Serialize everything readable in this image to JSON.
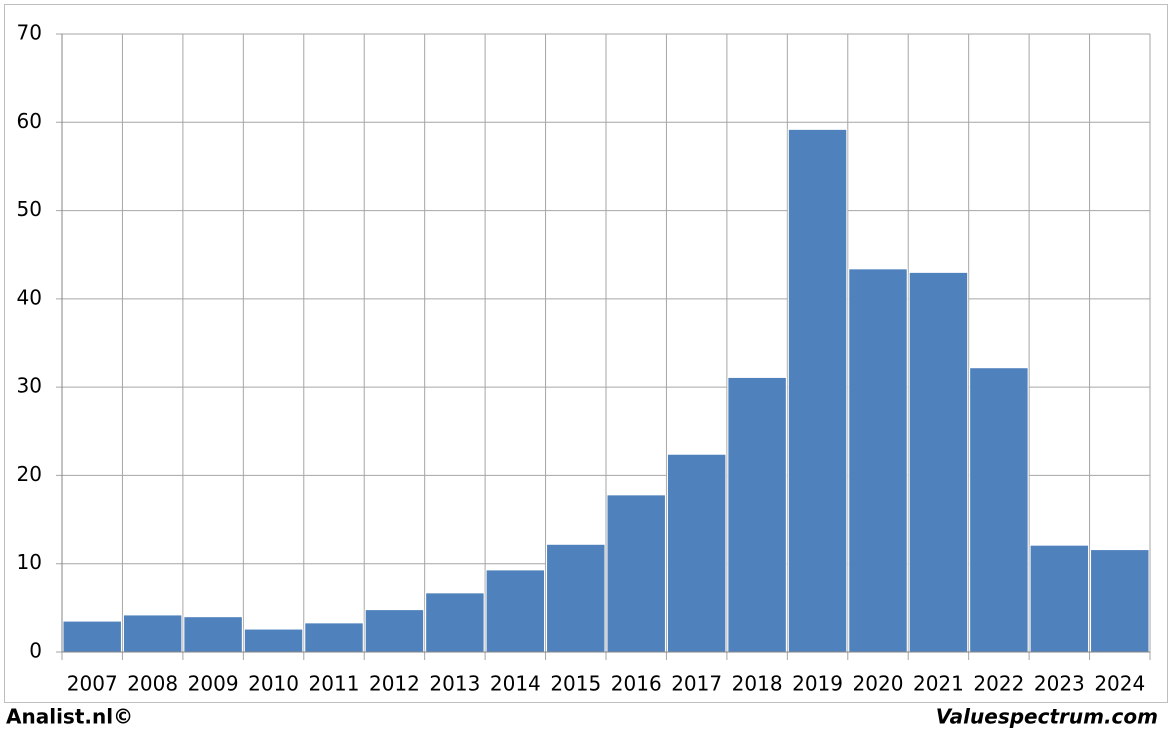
{
  "chart_data": {
    "type": "bar",
    "categories": [
      "2007",
      "2008",
      "2009",
      "2010",
      "2011",
      "2012",
      "2013",
      "2014",
      "2015",
      "2016",
      "2017",
      "2018",
      "2019",
      "2020",
      "2021",
      "2022",
      "2023",
      "2024"
    ],
    "values": [
      3.5,
      4.2,
      4.0,
      2.6,
      3.3,
      4.8,
      6.7,
      9.3,
      12.2,
      17.8,
      22.4,
      31.1,
      59.2,
      43.4,
      43.0,
      32.2,
      12.1,
      11.6
    ],
    "color": "#4f81bd",
    "ylim": [
      0,
      70
    ],
    "yticks": [
      0,
      10,
      20,
      30,
      40,
      50,
      60,
      70
    ],
    "grid": true,
    "credit_left": "Analist.nl©",
    "credit_right": "Valuespectrum.com"
  }
}
